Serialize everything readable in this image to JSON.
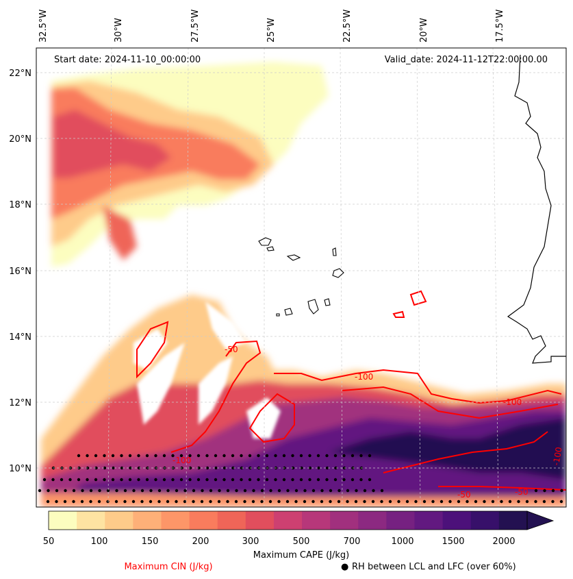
{
  "header": {
    "start_date": "Start date: 2024-11-10_00:00:00",
    "valid_date": "Valid_date: 2024-11-12T22:00:00.00"
  },
  "axes": {
    "lon_labels": [
      "32.5°W",
      "30°W",
      "27.5°W",
      "25°W",
      "22.5°W",
      "20°W",
      "17.5°W"
    ],
    "lat_labels": [
      "22°N",
      "20°N",
      "18°N",
      "16°N",
      "14°N",
      "12°N",
      "10°N"
    ]
  },
  "contour_labels": [
    "-50",
    "-100",
    "-100",
    "-100",
    "-50",
    "-50",
    "-100"
  ],
  "colorbar": {
    "ticks": [
      "50",
      "100",
      "150",
      "200",
      "300",
      "500",
      "700",
      "1000",
      "1500",
      "2000"
    ],
    "label": "Maximum CAPE (J/kg)",
    "colors": [
      "#fcfdbf",
      "#fee3a2",
      "#fecb8a",
      "#feb078",
      "#fd9668",
      "#f97c5d",
      "#ef6558",
      "#e14e5d",
      "#cd4071",
      "#b7377a",
      "#a1307e",
      "#8c2981",
      "#762181",
      "#621980",
      "#4c117a",
      "#37106a",
      "#231151"
    ]
  },
  "legend": {
    "cin_label": "Maximum CIN (J/kg)",
    "cin_color": "#ff0000",
    "rh_label": "RH between LCL and LFC (over 60%)",
    "rh_symbol": "●"
  }
}
